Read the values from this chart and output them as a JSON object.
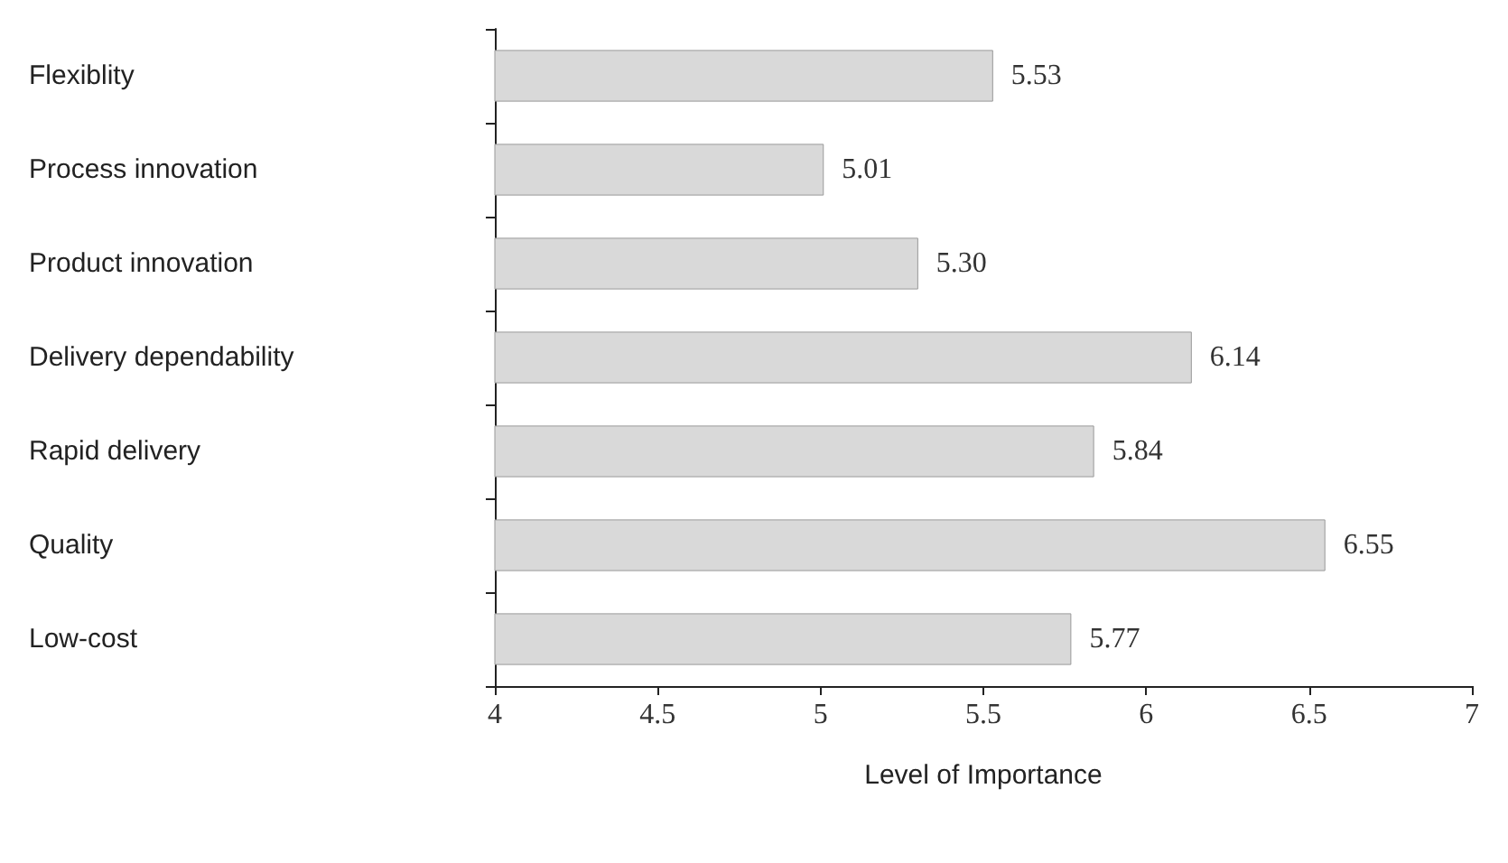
{
  "chart_data": {
    "type": "bar",
    "orientation": "horizontal",
    "xlabel": "Level of Importance",
    "categories": [
      "Flexiblity",
      "Process innovation",
      "Product innovation",
      "Delivery dependability",
      "Rapid delivery",
      "Quality",
      "Low-cost"
    ],
    "values": [
      5.53,
      5.01,
      5.3,
      6.14,
      5.84,
      6.55,
      5.77
    ],
    "value_labels": [
      "5.53",
      "5.01",
      "5.30",
      "6.14",
      "5.84",
      "6.55",
      "5.77"
    ],
    "color": "#d9d9d9",
    "xlim": [
      4,
      7
    ],
    "xticks": [
      4,
      4.5,
      5,
      5.5,
      6,
      6.5,
      7
    ],
    "grid": false
  }
}
